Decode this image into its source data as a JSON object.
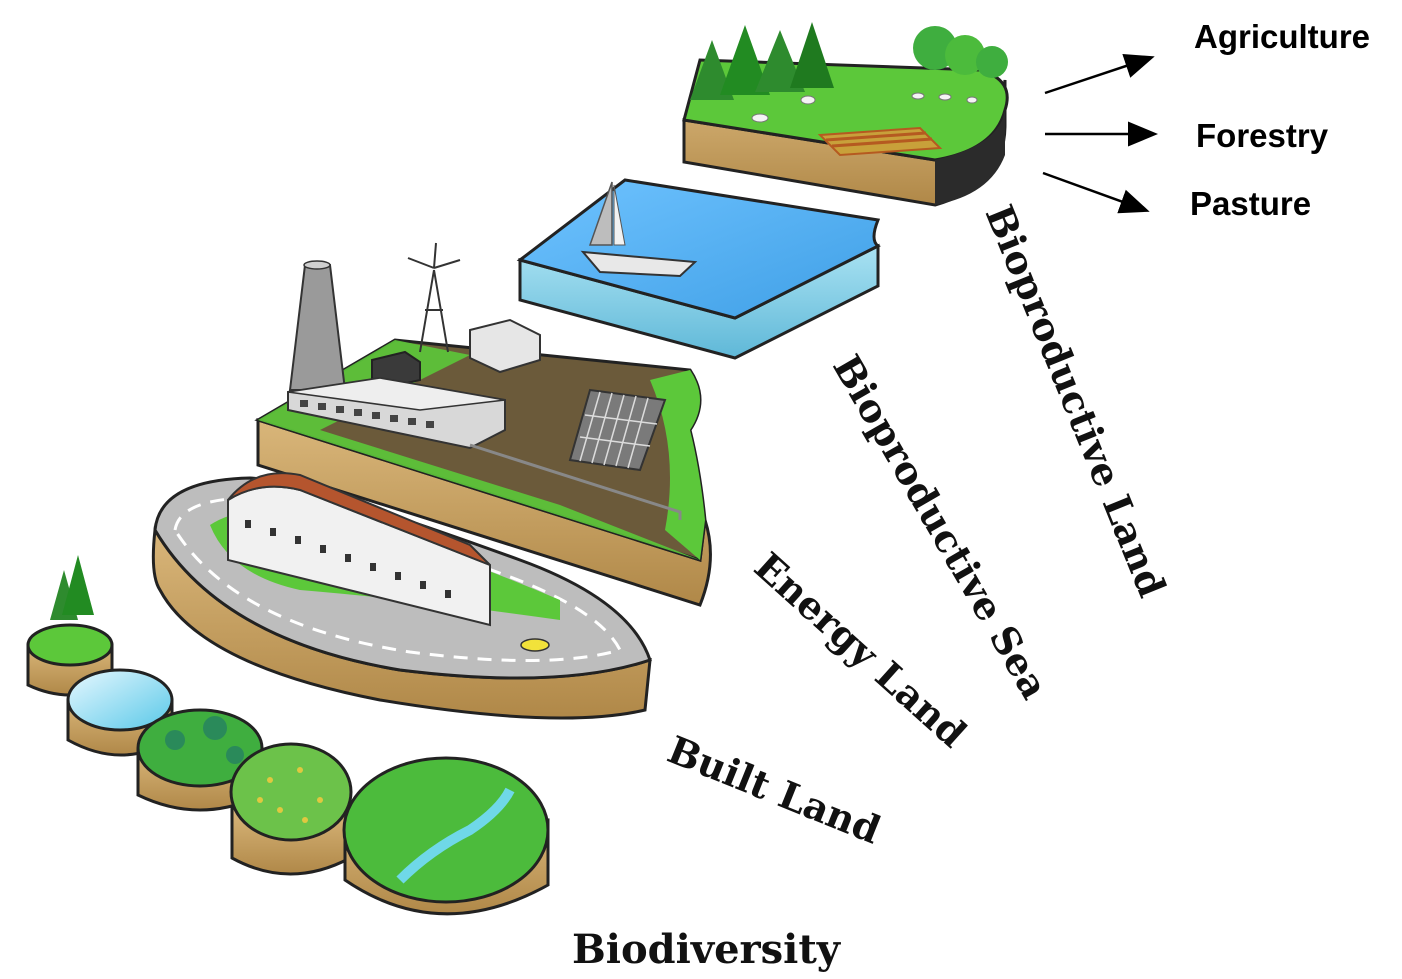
{
  "layer_labels": {
    "bioproductive_land": "Bioproductive Land",
    "bioproductive_sea": "Bioproductive Sea",
    "energy_land": "Energy Land",
    "built_land": "Built Land",
    "biodiversity": "Biodiversity"
  },
  "land_uses": {
    "agriculture": "Agriculture",
    "forestry": "Forestry",
    "pasture": "Pasture"
  },
  "colors": {
    "grass": "#5cc83a",
    "grass_dark": "#2e8b2e",
    "soil": "#c9a46a",
    "soil_dark": "#8a6a3a",
    "sea": "#5ab4f0",
    "sea_side": "#86cfe8",
    "road": "#bdbdbd",
    "roof": "#b5552e",
    "energy_ground": "#6b5a3a"
  }
}
